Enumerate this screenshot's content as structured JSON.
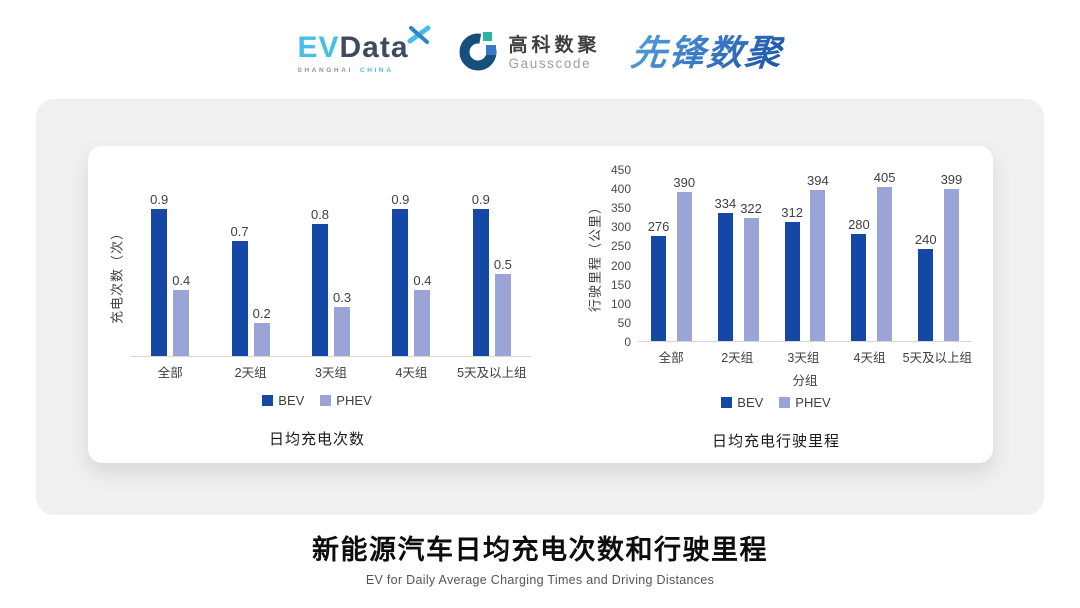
{
  "header": {
    "evdata": {
      "part1": "EV",
      "part2": "Data",
      "sub1": "SHANGHAI",
      "sub2": "CHINA"
    },
    "gausscode": {
      "cn": "高科数聚",
      "en": "Gausscode"
    },
    "pioneer": {
      "text": "先锋数聚"
    }
  },
  "chart_data": [
    {
      "type": "bar",
      "title": "日均充电次数",
      "ylabel": "充电次数（次）",
      "xlabel": "",
      "categories": [
        "全部",
        "2天组",
        "3天组",
        "4天组",
        "5天及以上组"
      ],
      "series": [
        {
          "name": "BEV",
          "color": "#1548A4",
          "values": [
            0.9,
            0.7,
            0.8,
            0.9,
            0.9
          ]
        },
        {
          "name": "PHEV",
          "color": "#9AA4D6",
          "values": [
            0.4,
            0.2,
            0.3,
            0.4,
            0.5
          ]
        }
      ],
      "ylim": [
        0,
        1
      ],
      "grid": false,
      "legend_position": "bottom",
      "data_labels": true
    },
    {
      "type": "bar",
      "title": "日均充电行驶里程",
      "ylabel": "行驶里程（公里）",
      "xlabel": "分组",
      "categories": [
        "全部",
        "2天组",
        "3天组",
        "4天组",
        "5天及以上组"
      ],
      "series": [
        {
          "name": "BEV",
          "color": "#1548A4",
          "values": [
            276,
            334,
            312,
            280,
            240
          ]
        },
        {
          "name": "PHEV",
          "color": "#9AA4D6",
          "values": [
            390,
            322,
            394,
            405,
            399
          ]
        }
      ],
      "ylim": [
        0,
        450
      ],
      "y_ticks": [
        0,
        50,
        100,
        150,
        200,
        250,
        300,
        350,
        400,
        450
      ],
      "grid": false,
      "legend_position": "bottom",
      "data_labels": true
    }
  ],
  "footer": {
    "title": "新能源汽车日均充电次数和行驶里程",
    "subtitle": "EV for Daily Average Charging Times and Driving Distances"
  },
  "colors": {
    "bev": "#1548A4",
    "phev": "#9AA4D6",
    "card_gray": "#F0F0F1",
    "axis_line": "#D8D8D8",
    "evdata_blue": "#45BEE8",
    "evdata_dark": "#3D4B5C",
    "gauss_navy": "#174F7C",
    "gauss_teal": "#2BB3A3",
    "gauss_blue": "#3579C8",
    "pioneer_blue_light": "#55A0DC",
    "pioneer_blue_dark": "#1C52A8"
  }
}
